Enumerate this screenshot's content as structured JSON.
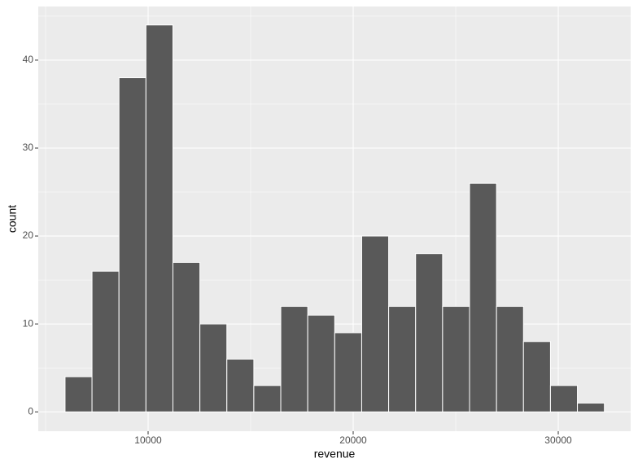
{
  "chart_data": {
    "type": "histogram",
    "x_label": "revenue",
    "y_label": "count",
    "bins": [
      5950,
      7265,
      8580,
      9895,
      11210,
      12525,
      13840,
      15155,
      16470,
      17785,
      19100,
      20415,
      21730,
      23045,
      24360,
      25675,
      26990,
      28305,
      29620,
      30935,
      32250
    ],
    "values": [
      4,
      16,
      38,
      44,
      17,
      10,
      6,
      3,
      12,
      11,
      9,
      20,
      12,
      18,
      12,
      26,
      12,
      8,
      3,
      1
    ],
    "color": "#595959",
    "xlim": [
      4643,
      33532
    ],
    "xticks": [
      10000,
      20000,
      30000
    ],
    "ylim": [
      -2.2,
      46.1
    ],
    "yticks": [
      0,
      10,
      20,
      30,
      40
    ],
    "grid": true
  }
}
